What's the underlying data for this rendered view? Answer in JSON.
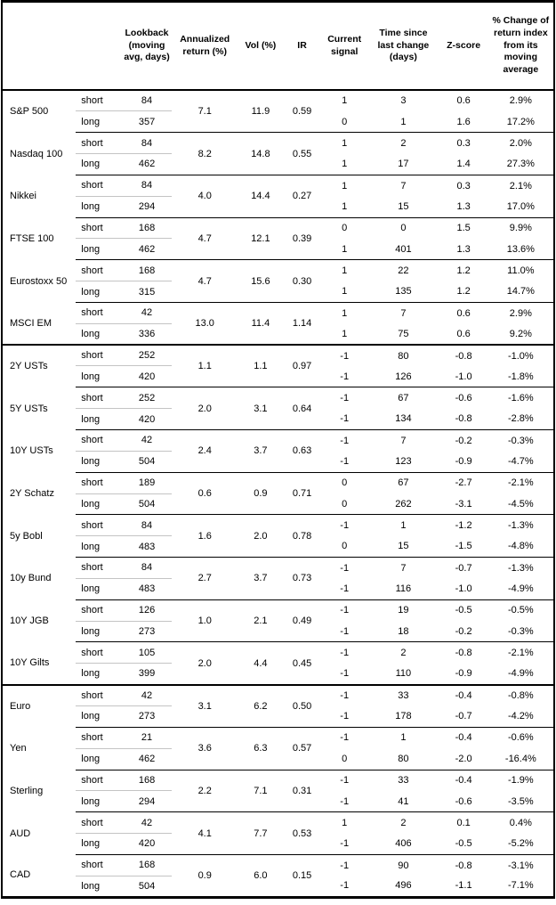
{
  "table": {
    "headers": {
      "lookback": "Lookback\n(moving\navg, days)",
      "annualized_return": "Annualized\nreturn (%)",
      "vol": "Vol (%)",
      "ir": "IR",
      "current_signal": "Current\nsignal",
      "time_since": "Time since\nlast change\n(days)",
      "zscore": "Z-score",
      "pct_change": "% Change of\nreturn index\nfrom its\nmoving\naverage"
    },
    "sections": [
      {
        "assets": [
          {
            "name": "S&P 500",
            "annualized_return": "7.1",
            "vol": "11.9",
            "ir": "0.59",
            "rows": [
              {
                "leg": "short",
                "lookback": "84",
                "signal": "1",
                "days": "3",
                "zscore": "0.6",
                "pct": "2.9%"
              },
              {
                "leg": "long",
                "lookback": "357",
                "signal": "0",
                "days": "1",
                "zscore": "1.6",
                "pct": "17.2%"
              }
            ]
          },
          {
            "name": "Nasdaq 100",
            "annualized_return": "8.2",
            "vol": "14.8",
            "ir": "0.55",
            "rows": [
              {
                "leg": "short",
                "lookback": "84",
                "signal": "1",
                "days": "2",
                "zscore": "0.3",
                "pct": "2.0%"
              },
              {
                "leg": "long",
                "lookback": "462",
                "signal": "1",
                "days": "17",
                "zscore": "1.4",
                "pct": "27.3%"
              }
            ]
          },
          {
            "name": "Nikkei",
            "annualized_return": "4.0",
            "vol": "14.4",
            "ir": "0.27",
            "rows": [
              {
                "leg": "short",
                "lookback": "84",
                "signal": "1",
                "days": "7",
                "zscore": "0.3",
                "pct": "2.1%"
              },
              {
                "leg": "long",
                "lookback": "294",
                "signal": "1",
                "days": "15",
                "zscore": "1.3",
                "pct": "17.0%"
              }
            ]
          },
          {
            "name": "FTSE 100",
            "annualized_return": "4.7",
            "vol": "12.1",
            "ir": "0.39",
            "rows": [
              {
                "leg": "short",
                "lookback": "168",
                "signal": "0",
                "days": "0",
                "zscore": "1.5",
                "pct": "9.9%"
              },
              {
                "leg": "long",
                "lookback": "462",
                "signal": "1",
                "days": "401",
                "zscore": "1.3",
                "pct": "13.6%"
              }
            ]
          },
          {
            "name": "Eurostoxx 50",
            "annualized_return": "4.7",
            "vol": "15.6",
            "ir": "0.30",
            "rows": [
              {
                "leg": "short",
                "lookback": "168",
                "signal": "1",
                "days": "22",
                "zscore": "1.2",
                "pct": "11.0%"
              },
              {
                "leg": "long",
                "lookback": "315",
                "signal": "1",
                "days": "135",
                "zscore": "1.2",
                "pct": "14.7%"
              }
            ]
          },
          {
            "name": "MSCI EM",
            "annualized_return": "13.0",
            "vol": "11.4",
            "ir": "1.14",
            "rows": [
              {
                "leg": "short",
                "lookback": "42",
                "signal": "1",
                "days": "7",
                "zscore": "0.6",
                "pct": "2.9%"
              },
              {
                "leg": "long",
                "lookback": "336",
                "signal": "1",
                "days": "75",
                "zscore": "0.6",
                "pct": "9.2%"
              }
            ]
          }
        ]
      },
      {
        "assets": [
          {
            "name": "2Y USTs",
            "annualized_return": "1.1",
            "vol": "1.1",
            "ir": "0.97",
            "rows": [
              {
                "leg": "short",
                "lookback": "252",
                "signal": "-1",
                "days": "80",
                "zscore": "-0.8",
                "pct": "-1.0%"
              },
              {
                "leg": "long",
                "lookback": "420",
                "signal": "-1",
                "days": "126",
                "zscore": "-1.0",
                "pct": "-1.8%"
              }
            ]
          },
          {
            "name": "5Y USTs",
            "annualized_return": "2.0",
            "vol": "3.1",
            "ir": "0.64",
            "rows": [
              {
                "leg": "short",
                "lookback": "252",
                "signal": "-1",
                "days": "67",
                "zscore": "-0.6",
                "pct": "-1.6%"
              },
              {
                "leg": "long",
                "lookback": "420",
                "signal": "-1",
                "days": "134",
                "zscore": "-0.8",
                "pct": "-2.8%"
              }
            ]
          },
          {
            "name": "10Y USTs",
            "annualized_return": "2.4",
            "vol": "3.7",
            "ir": "0.63",
            "rows": [
              {
                "leg": "short",
                "lookback": "42",
                "signal": "-1",
                "days": "7",
                "zscore": "-0.2",
                "pct": "-0.3%"
              },
              {
                "leg": "long",
                "lookback": "504",
                "signal": "-1",
                "days": "123",
                "zscore": "-0.9",
                "pct": "-4.7%"
              }
            ]
          },
          {
            "name": "2Y Schatz",
            "annualized_return": "0.6",
            "vol": "0.9",
            "ir": "0.71",
            "rows": [
              {
                "leg": "short",
                "lookback": "189",
                "signal": "0",
                "days": "67",
                "zscore": "-2.7",
                "pct": "-2.1%"
              },
              {
                "leg": "long",
                "lookback": "504",
                "signal": "0",
                "days": "262",
                "zscore": "-3.1",
                "pct": "-4.5%"
              }
            ]
          },
          {
            "name": "5y Bobl",
            "annualized_return": "1.6",
            "vol": "2.0",
            "ir": "0.78",
            "rows": [
              {
                "leg": "short",
                "lookback": "84",
                "signal": "-1",
                "days": "1",
                "zscore": "-1.2",
                "pct": "-1.3%"
              },
              {
                "leg": "long",
                "lookback": "483",
                "signal": "0",
                "days": "15",
                "zscore": "-1.5",
                "pct": "-4.8%"
              }
            ]
          },
          {
            "name": "10y Bund",
            "annualized_return": "2.7",
            "vol": "3.7",
            "ir": "0.73",
            "rows": [
              {
                "leg": "short",
                "lookback": "84",
                "signal": "-1",
                "days": "7",
                "zscore": "-0.7",
                "pct": "-1.3%"
              },
              {
                "leg": "long",
                "lookback": "483",
                "signal": "-1",
                "days": "116",
                "zscore": "-1.0",
                "pct": "-4.9%"
              }
            ]
          },
          {
            "name": "10Y JGB",
            "annualized_return": "1.0",
            "vol": "2.1",
            "ir": "0.49",
            "rows": [
              {
                "leg": "short",
                "lookback": "126",
                "signal": "-1",
                "days": "19",
                "zscore": "-0.5",
                "pct": "-0.5%"
              },
              {
                "leg": "long",
                "lookback": "273",
                "signal": "-1",
                "days": "18",
                "zscore": "-0.2",
                "pct": "-0.3%"
              }
            ]
          },
          {
            "name": "10Y Gilts",
            "annualized_return": "2.0",
            "vol": "4.4",
            "ir": "0.45",
            "rows": [
              {
                "leg": "short",
                "lookback": "105",
                "signal": "-1",
                "days": "2",
                "zscore": "-0.8",
                "pct": "-2.1%"
              },
              {
                "leg": "long",
                "lookback": "399",
                "signal": "-1",
                "days": "110",
                "zscore": "-0.9",
                "pct": "-4.9%"
              }
            ]
          }
        ]
      },
      {
        "assets": [
          {
            "name": "Euro",
            "annualized_return": "3.1",
            "vol": "6.2",
            "ir": "0.50",
            "rows": [
              {
                "leg": "short",
                "lookback": "42",
                "signal": "-1",
                "days": "33",
                "zscore": "-0.4",
                "pct": "-0.8%"
              },
              {
                "leg": "long",
                "lookback": "273",
                "signal": "-1",
                "days": "178",
                "zscore": "-0.7",
                "pct": "-4.2%"
              }
            ]
          },
          {
            "name": "Yen",
            "annualized_return": "3.6",
            "vol": "6.3",
            "ir": "0.57",
            "rows": [
              {
                "leg": "short",
                "lookback": "21",
                "signal": "-1",
                "days": "1",
                "zscore": "-0.4",
                "pct": "-0.6%"
              },
              {
                "leg": "long",
                "lookback": "462",
                "signal": "0",
                "days": "80",
                "zscore": "-2.0",
                "pct": "-16.4%"
              }
            ]
          },
          {
            "name": "Sterling",
            "annualized_return": "2.2",
            "vol": "7.1",
            "ir": "0.31",
            "rows": [
              {
                "leg": "short",
                "lookback": "168",
                "signal": "-1",
                "days": "33",
                "zscore": "-0.4",
                "pct": "-1.9%"
              },
              {
                "leg": "long",
                "lookback": "294",
                "signal": "-1",
                "days": "41",
                "zscore": "-0.6",
                "pct": "-3.5%"
              }
            ]
          },
          {
            "name": "AUD",
            "annualized_return": "4.1",
            "vol": "7.7",
            "ir": "0.53",
            "rows": [
              {
                "leg": "short",
                "lookback": "42",
                "signal": "1",
                "days": "2",
                "zscore": "0.1",
                "pct": "0.4%"
              },
              {
                "leg": "long",
                "lookback": "420",
                "signal": "-1",
                "days": "406",
                "zscore": "-0.5",
                "pct": "-5.2%"
              }
            ]
          },
          {
            "name": "CAD",
            "annualized_return": "0.9",
            "vol": "6.0",
            "ir": "0.15",
            "rows": [
              {
                "leg": "short",
                "lookback": "168",
                "signal": "-1",
                "days": "90",
                "zscore": "-0.8",
                "pct": "-3.1%"
              },
              {
                "leg": "long",
                "lookback": "504",
                "signal": "-1",
                "days": "496",
                "zscore": "-1.1",
                "pct": "-7.1%"
              }
            ]
          }
        ]
      }
    ]
  }
}
